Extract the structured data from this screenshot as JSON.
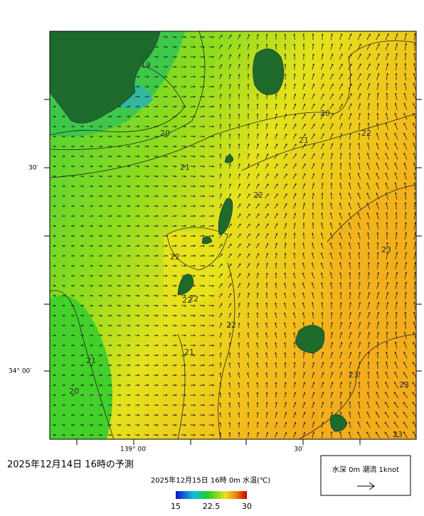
{
  "forecast_title": "2025年12月14日 16時の予測",
  "map_title": "2025年12月15日 16時 0m 水温(℃)",
  "axis_labels": {
    "lat": [
      "30′",
      "34° 00′"
    ],
    "lon": [
      "139° 00′",
      "30′"
    ]
  },
  "contour_labels": [
    19,
    20,
    20,
    21,
    21,
    22,
    22,
    22,
    22,
    22,
    22,
    23,
    23,
    23,
    23,
    21,
    21,
    20
  ],
  "colorbar": {
    "ticks": [
      15,
      22.5,
      30
    ]
  },
  "legend": "水深 0m 潮流 1knot"
}
